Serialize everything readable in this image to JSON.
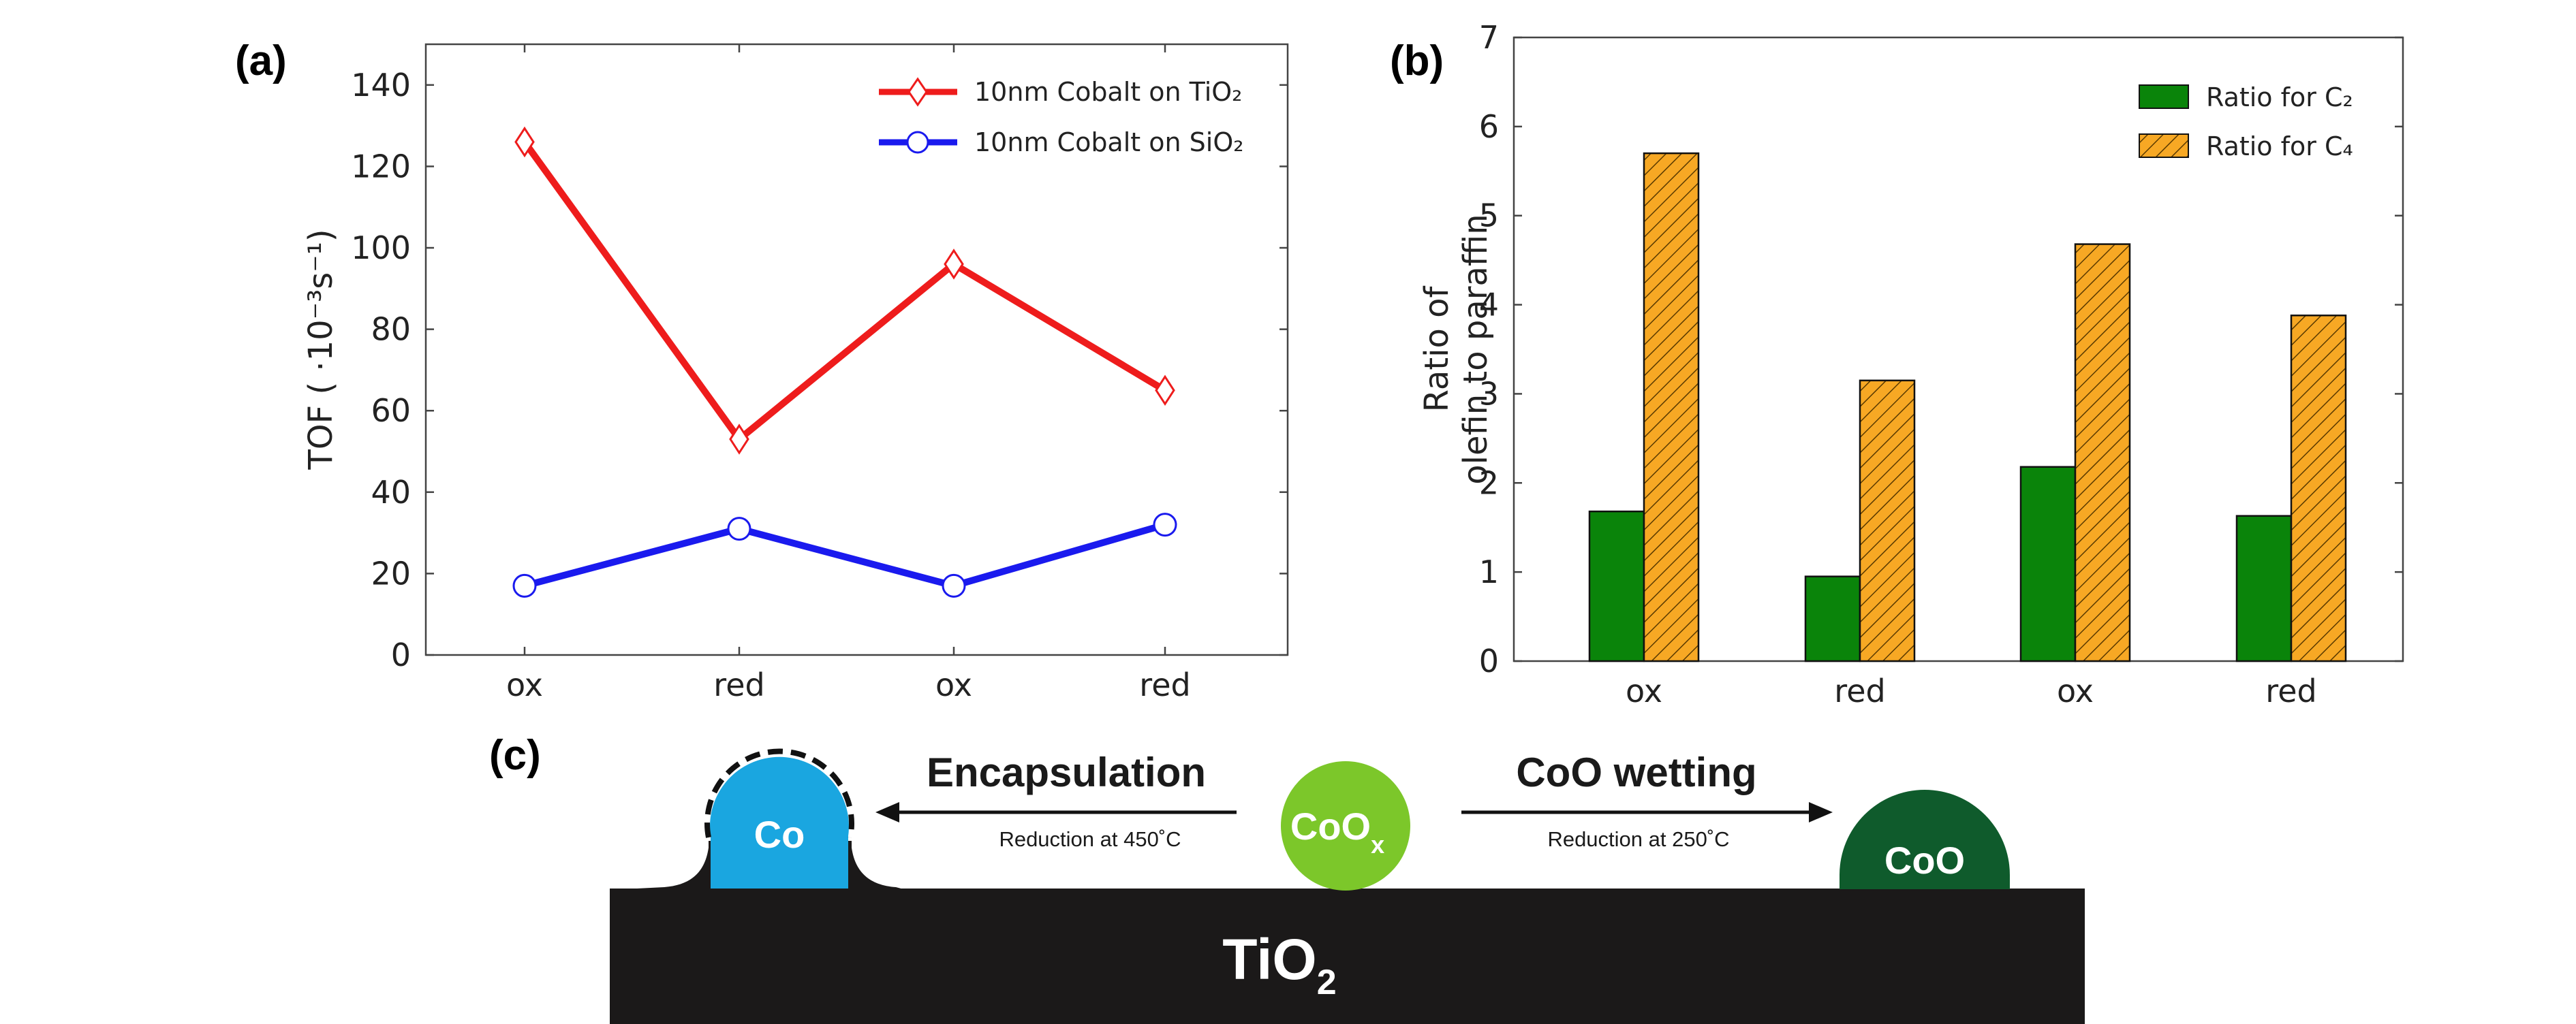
{
  "panels": {
    "a": "(a)",
    "b": "(b)",
    "c": "(c)"
  },
  "chart_data": [
    {
      "type": "line",
      "categories": [
        "ox",
        "red",
        "ox",
        "red"
      ],
      "ylabel": "TOF ( ·10⁻³s⁻¹)",
      "ylim": [
        0,
        150
      ],
      "yticks": [
        "0",
        "20",
        "40",
        "60",
        "80",
        "100",
        "120",
        "140"
      ],
      "grid": false,
      "legend_placement": "top-right",
      "series": [
        {
          "name": "10nm Cobalt on TiO₂",
          "values": [
            126,
            53,
            96,
            65
          ],
          "color": "#ee1c1c",
          "marker": "diamond"
        },
        {
          "name": "10nm Cobalt on SiO₂",
          "values": [
            17,
            31,
            17,
            32
          ],
          "color": "#1a1aee",
          "marker": "circle"
        }
      ]
    },
    {
      "type": "bar",
      "categories": [
        "ox",
        "red",
        "ox",
        "red"
      ],
      "ylabel": "Ratio of olefin to paraffin",
      "ylabel_lines": [
        "Ratio of",
        "olefin to paraffin"
      ],
      "ylim": [
        0,
        7
      ],
      "yticks": [
        "0",
        "1",
        "2",
        "3",
        "4",
        "5",
        "6",
        "7"
      ],
      "grid": false,
      "legend_placement": "top-right",
      "series": [
        {
          "name": "Ratio for C₂",
          "values": [
            1.68,
            0.95,
            2.18,
            1.63
          ],
          "color": "#0a840a",
          "pattern": "solid"
        },
        {
          "name": "Ratio for C₄",
          "values": [
            5.7,
            3.15,
            4.68,
            3.88
          ],
          "color": "#f7a824",
          "pattern": "hatched"
        }
      ]
    }
  ],
  "diagram": {
    "substrate": "TiO",
    "substrate_sub": "2",
    "left_process": "Encapsulation",
    "left_condition": "Reduction at 450˚C",
    "right_process": "CoO wetting",
    "right_condition": "Reduction at 250˚C",
    "particles": {
      "left": "Co",
      "center": "CoO",
      "center_sub": "x",
      "right": "CoO"
    },
    "colors": {
      "co": "#1aa6e0",
      "coox": "#7cc72a",
      "coo": "#0f5b2c",
      "substrate": "#1b1919"
    }
  }
}
